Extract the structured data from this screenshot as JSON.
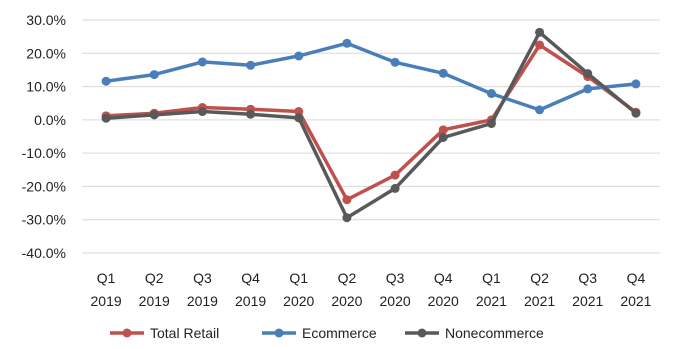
{
  "chart_data": {
    "type": "line",
    "title": "",
    "xlabel": "",
    "ylabel": "",
    "categories": [
      [
        "Q1",
        "2019"
      ],
      [
        "Q2",
        "2019"
      ],
      [
        "Q3",
        "2019"
      ],
      [
        "Q4",
        "2019"
      ],
      [
        "Q1",
        "2020"
      ],
      [
        "Q2",
        "2020"
      ],
      [
        "Q3",
        "2020"
      ],
      [
        "Q4",
        "2020"
      ],
      [
        "Q1",
        "2021"
      ],
      [
        "Q2",
        "2021"
      ],
      [
        "Q3",
        "2021"
      ],
      [
        "Q4",
        "2021"
      ]
    ],
    "ylim": [
      -40,
      30
    ],
    "yticks": [
      30,
      20,
      10,
      0,
      -10,
      -20,
      -30,
      -40
    ],
    "ytick_labels": [
      "30.0%",
      "20.0%",
      "10.0%",
      "0.0%",
      "-10.0%",
      "-20.0%",
      "-30.0%",
      "-40.0%"
    ],
    "grid": true,
    "legend_position": "bottom",
    "series": [
      {
        "name": "Total Retail",
        "color": "#c0504d",
        "values": [
          1.2,
          2.0,
          3.7,
          3.2,
          2.5,
          -24.0,
          -16.6,
          -3.0,
          0.0,
          22.5,
          13.0,
          2.3
        ]
      },
      {
        "name": "Ecommerce",
        "color": "#4a7ebb",
        "values": [
          11.6,
          13.6,
          17.4,
          16.4,
          19.2,
          23.0,
          17.3,
          14.0,
          7.9,
          3.0,
          9.3,
          10.8
        ]
      },
      {
        "name": "Nonecommerce",
        "color": "#595959",
        "values": [
          0.5,
          1.5,
          2.5,
          1.7,
          0.6,
          -29.4,
          -20.6,
          -5.3,
          -1.1,
          26.3,
          13.9,
          2.0
        ]
      }
    ]
  }
}
